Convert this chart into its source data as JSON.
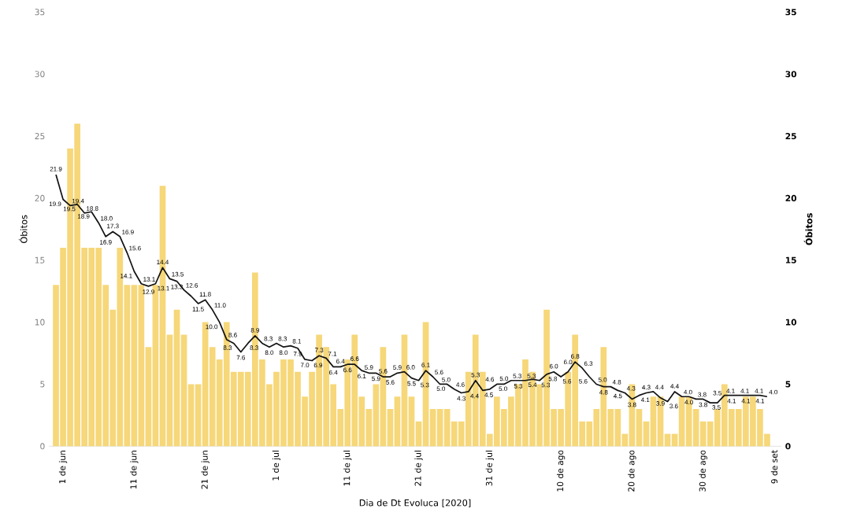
{
  "chart_data": {
    "type": "bar",
    "xlabel": "Dia de Dt Evoluca [2020]",
    "ylabel": "Óbitos",
    "y2label": "Óbitos",
    "x": [
      "2020-05-31",
      "2020-06-01",
      "2020-06-02",
      "2020-06-03",
      "2020-06-04",
      "2020-06-05",
      "2020-06-06",
      "2020-06-07",
      "2020-06-08",
      "2020-06-09",
      "2020-06-10",
      "2020-06-11",
      "2020-06-12",
      "2020-06-13",
      "2020-06-14",
      "2020-06-15",
      "2020-06-16",
      "2020-06-17",
      "2020-06-18",
      "2020-06-19",
      "2020-06-20",
      "2020-06-21",
      "2020-06-22",
      "2020-06-23",
      "2020-06-24",
      "2020-06-25",
      "2020-06-26",
      "2020-06-27",
      "2020-06-28",
      "2020-06-29",
      "2020-06-30",
      "2020-07-01",
      "2020-07-02",
      "2020-07-03",
      "2020-07-04",
      "2020-07-05",
      "2020-07-06",
      "2020-07-07",
      "2020-07-08",
      "2020-07-09",
      "2020-07-10",
      "2020-07-11",
      "2020-07-12",
      "2020-07-13",
      "2020-07-14",
      "2020-07-15",
      "2020-07-16",
      "2020-07-17",
      "2020-07-18",
      "2020-07-19",
      "2020-07-20",
      "2020-07-21",
      "2020-07-22",
      "2020-07-23",
      "2020-07-24",
      "2020-07-25",
      "2020-07-26",
      "2020-07-27",
      "2020-07-28",
      "2020-07-29",
      "2020-07-30",
      "2020-07-31",
      "2020-08-01",
      "2020-08-02",
      "2020-08-03",
      "2020-08-04",
      "2020-08-05",
      "2020-08-06",
      "2020-08-07",
      "2020-08-08",
      "2020-08-09",
      "2020-08-10",
      "2020-08-11",
      "2020-08-12",
      "2020-08-13",
      "2020-08-14",
      "2020-08-15",
      "2020-08-16",
      "2020-08-17",
      "2020-08-18",
      "2020-08-19",
      "2020-08-20",
      "2020-08-21",
      "2020-08-22",
      "2020-08-23",
      "2020-08-24",
      "2020-08-25",
      "2020-08-26",
      "2020-08-27",
      "2020-08-28",
      "2020-08-29",
      "2020-08-30",
      "2020-08-31",
      "2020-09-01",
      "2020-09-02",
      "2020-09-03",
      "2020-09-04",
      "2020-09-05",
      "2020-09-06",
      "2020-09-07",
      "2020-09-08"
    ],
    "series": [
      {
        "color": "#f6d779",
        "values": [
          13,
          16,
          24,
          26,
          16,
          16,
          16,
          13,
          11,
          16,
          13,
          13,
          13,
          8,
          13,
          21,
          9,
          11,
          9,
          5,
          5,
          10,
          8,
          7,
          10,
          6,
          6,
          6,
          14,
          7,
          5,
          6,
          7,
          7,
          6,
          4,
          6,
          9,
          8,
          5,
          3,
          7,
          9,
          4,
          3,
          5,
          8,
          3,
          4,
          9,
          4,
          2,
          10,
          3,
          3,
          3,
          2,
          2,
          6,
          9,
          6,
          1,
          4,
          3,
          4,
          5,
          7,
          6,
          5,
          11,
          3,
          3,
          6,
          9,
          2,
          2,
          3,
          8,
          3,
          3,
          1,
          5,
          3,
          2,
          4,
          4,
          1,
          1,
          4,
          4,
          3,
          2,
          2,
          3,
          5,
          3,
          3,
          4,
          4,
          3,
          1
        ]
      },
      {
        "type": "line",
        "color": "#141414",
        "values": [
          21.9,
          19.9,
          19.4,
          19.5,
          18.8,
          18.9,
          18.0,
          16.9,
          17.3,
          16.9,
          15.6,
          14.1,
          13.1,
          12.9,
          13.1,
          14.4,
          13.5,
          13.3,
          12.6,
          12.1,
          11.5,
          11.8,
          11.0,
          10.0,
          8.6,
          8.3,
          7.6,
          8.3,
          8.9,
          8.3,
          8.0,
          8.3,
          8.0,
          8.1,
          7.9,
          7.0,
          6.9,
          7.3,
          7.1,
          6.4,
          6.4,
          6.6,
          6.6,
          6.1,
          5.9,
          5.9,
          5.6,
          5.6,
          5.9,
          6.0,
          5.5,
          5.3,
          6.1,
          5.6,
          5.0,
          5.0,
          4.6,
          4.3,
          4.4,
          5.3,
          4.5,
          4.6,
          5.0,
          5.0,
          5.3,
          5.3,
          5.3,
          5.4,
          5.3,
          5.8,
          6.0,
          5.6,
          6.0,
          6.8,
          6.3,
          5.6,
          5.0,
          4.8,
          4.8,
          4.5,
          4.3,
          3.8,
          4.1,
          4.3,
          4.4,
          3.9,
          3.6,
          4.4,
          4.0,
          4.0,
          3.8,
          3.8,
          3.5,
          3.5,
          4.1,
          4.1,
          4.1,
          4.1,
          4.1,
          4.1,
          4.0
        ],
        "value_labels": [
          "21.9",
          "19.9",
          "19.4",
          "19.5",
          "18.8",
          "18.9",
          "18.0",
          "16.9",
          "17.3",
          "16.9",
          "15.6",
          "14.1",
          "13.1",
          "12.9",
          "13.1",
          "14.4",
          "13.5",
          "13.3",
          "12.6",
          null,
          "11.5",
          "11.8",
          "11.0",
          "10.0",
          "8.6",
          "8.3",
          "7.6",
          "8.3",
          "8.9",
          "8.3",
          "8.0",
          "8.3",
          "8.0",
          "8.1",
          "7.9",
          "7.0",
          "6.9",
          "7.3",
          "7.1",
          "6.4",
          "6.4",
          "6.6",
          "6.6",
          "6.1",
          "5.9",
          "5.9",
          "5.6",
          "5.6",
          "5.9",
          "6.0",
          "5.5",
          "5.3",
          "6.1",
          "5.6",
          "5.0",
          "5.0",
          "4.6",
          "4.3",
          "4.4",
          "5.3",
          "4.5",
          "4.6",
          "5.0",
          "5.0",
          "5.3",
          "5.3",
          "5.3",
          "5.4",
          "5.3",
          "5.8",
          "6.0",
          "5.6",
          "6.0",
          "6.8",
          "6.3",
          "5.6",
          "5.0",
          "4.8",
          "4.8",
          "4.5",
          "4.3",
          "3.8",
          "4.1",
          "4.3",
          "4.4",
          "3.9",
          "3.6",
          "4.4",
          "4.0",
          "4.0",
          "3.8",
          "3.8",
          "3.5",
          "3.5",
          "4.1",
          "4.1",
          "4.1",
          "4.1",
          "4.1",
          "4.1",
          "4.0"
        ]
      }
    ],
    "xlim": [
      "2020-05-30",
      "2020-09-10"
    ],
    "xticks": [
      {
        "value": "2020-06-01",
        "label": "1 de jun"
      },
      {
        "value": "2020-06-11",
        "label": "11 de jun"
      },
      {
        "value": "2020-06-21",
        "label": "21 de jun"
      },
      {
        "value": "2020-07-01",
        "label": "1 de jul"
      },
      {
        "value": "2020-07-11",
        "label": "11 de jul"
      },
      {
        "value": "2020-07-21",
        "label": "21 de jul"
      },
      {
        "value": "2020-07-31",
        "label": "31 de jul"
      },
      {
        "value": "2020-08-10",
        "label": "10 de ago"
      },
      {
        "value": "2020-08-20",
        "label": "20 de ago"
      },
      {
        "value": "2020-08-30",
        "label": "30 de ago"
      },
      {
        "value": "2020-09-09",
        "label": "9 de set"
      }
    ],
    "ylim": [
      0,
      35
    ],
    "yticks": [
      0,
      5,
      10,
      15,
      20,
      25,
      30,
      35
    ],
    "y2lim": [
      0,
      35
    ],
    "y2ticks": [
      0,
      5,
      10,
      15,
      20,
      25,
      30,
      35
    ],
    "marker": "none",
    "line_style": "solid"
  }
}
